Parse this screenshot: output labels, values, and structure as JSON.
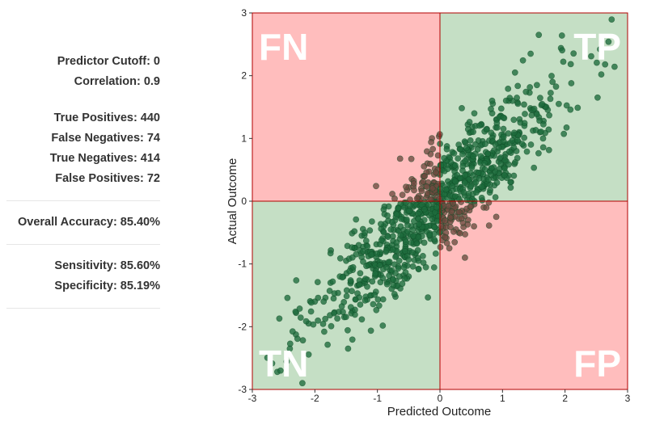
{
  "stats": {
    "cutoff": "Predictor Cutoff: 0",
    "correlation": "Correlation: 0.9",
    "true_positives": "True Positives: 440",
    "false_negatives": "False Negatives: 74",
    "true_negatives": "True Negatives: 414",
    "false_positives": "False Positives: 72",
    "overall_accuracy": "Overall Accuracy: 85.40%",
    "sensitivity": "Sensitivity: 85.60%",
    "specificity": "Specificity: 85.19%"
  },
  "colors": {
    "correct_quadrant": "#c5dfc5",
    "wrong_quadrant": "#ffbdbd",
    "frame": "#b00000",
    "point": "#1e6b3c",
    "point_misclassified": "#6b4a3f",
    "point_edge": "#0d4a24"
  },
  "chart_data": {
    "type": "scatter",
    "xlabel": "Predicted Outcome",
    "ylabel": "Actual Outcome",
    "xlim": [
      -3,
      3
    ],
    "ylim": [
      -3,
      3
    ],
    "xticks": [
      -3,
      -2,
      -1,
      0,
      1,
      2,
      3
    ],
    "yticks": [
      -3,
      -2,
      -1,
      0,
      1,
      2,
      3
    ],
    "cutoff": 0,
    "correlation": 0.9,
    "quadrant_labels": {
      "top_left": "FN",
      "top_right": "TP",
      "bottom_left": "TN",
      "bottom_right": "FP"
    },
    "counts": {
      "TP": 440,
      "FN": 74,
      "TN": 414,
      "FP": 72
    },
    "sample_points": [
      [
        2.56,
        2.42
      ],
      [
        2.64,
        2.18
      ],
      [
        2.58,
        2.02
      ],
      [
        1.95,
        2.64
      ],
      [
        1.58,
        2.65
      ],
      [
        2.52,
        1.65
      ],
      [
        2.1,
        1.88
      ],
      [
        1.2,
        2.05
      ],
      [
        1.45,
        2.35
      ],
      [
        1.8,
        1.9
      ],
      [
        0.55,
        1.4
      ],
      [
        0.9,
        1.3
      ],
      [
        1.1,
        1.6
      ],
      [
        0.3,
        0.9
      ],
      [
        0.7,
        0.65
      ],
      [
        0.85,
        1.05
      ],
      [
        1.35,
        1.2
      ],
      [
        1.55,
        1.85
      ],
      [
        1.7,
        1.5
      ],
      [
        1.05,
        0.75
      ],
      [
        0.4,
        0.35
      ],
      [
        0.2,
        0.55
      ],
      [
        0.6,
        0.2
      ],
      [
        0.95,
        0.45
      ],
      [
        0.15,
        0.15
      ],
      [
        1.25,
        0.95
      ],
      [
        0.5,
        0.85
      ],
      [
        0.75,
        1.15
      ],
      [
        1.6,
        1.1
      ],
      [
        1.9,
        1.55
      ],
      [
        -2.6,
        -2.72
      ],
      [
        -2.55,
        -2.7
      ],
      [
        -2.2,
        -2.9
      ],
      [
        -2.4,
        -2.35
      ],
      [
        -2.1,
        -1.95
      ],
      [
        -2.3,
        -1.78
      ],
      [
        -1.85,
        -2.08
      ],
      [
        -1.7,
        -1.55
      ],
      [
        -1.4,
        -1.75
      ],
      [
        -1.6,
        -1.2
      ],
      [
        -1.2,
        -1.3
      ],
      [
        -1.0,
        -0.95
      ],
      [
        -0.8,
        -1.1
      ],
      [
        -1.3,
        -0.7
      ],
      [
        -0.6,
        -0.55
      ],
      [
        -0.9,
        -0.4
      ],
      [
        -0.4,
        -0.85
      ],
      [
        -0.25,
        -0.3
      ],
      [
        -0.7,
        -0.2
      ],
      [
        -0.15,
        -0.6
      ],
      [
        -1.5,
        -0.95
      ],
      [
        -1.1,
        -1.5
      ],
      [
        -0.5,
        -1.2
      ],
      [
        -0.3,
        -0.1
      ],
      [
        -0.05,
        -0.45
      ],
      [
        -0.85,
        -0.75
      ],
      [
        -1.75,
        -1.3
      ],
      [
        -2.0,
        -1.6
      ],
      [
        -0.65,
        -0.95
      ],
      [
        -1.25,
        -0.55
      ],
      [
        -0.3,
        0.2
      ],
      [
        -0.45,
        0.35
      ],
      [
        -0.2,
        0.6
      ],
      [
        -0.1,
        0.3
      ],
      [
        -0.6,
        0.1
      ],
      [
        -0.15,
        0.75
      ],
      [
        -0.35,
        0.05
      ],
      [
        -0.05,
        0.15
      ],
      [
        -0.25,
        0.4
      ],
      [
        -0.5,
        0.22
      ],
      [
        0.2,
        -0.15
      ],
      [
        0.45,
        -0.3
      ],
      [
        0.3,
        -0.5
      ],
      [
        0.7,
        -0.1
      ],
      [
        0.1,
        -0.35
      ],
      [
        0.9,
        -0.25
      ],
      [
        0.55,
        -0.05
      ],
      [
        0.15,
        -0.75
      ],
      [
        0.05,
        -0.55
      ],
      [
        0.4,
        -0.9
      ]
    ]
  }
}
